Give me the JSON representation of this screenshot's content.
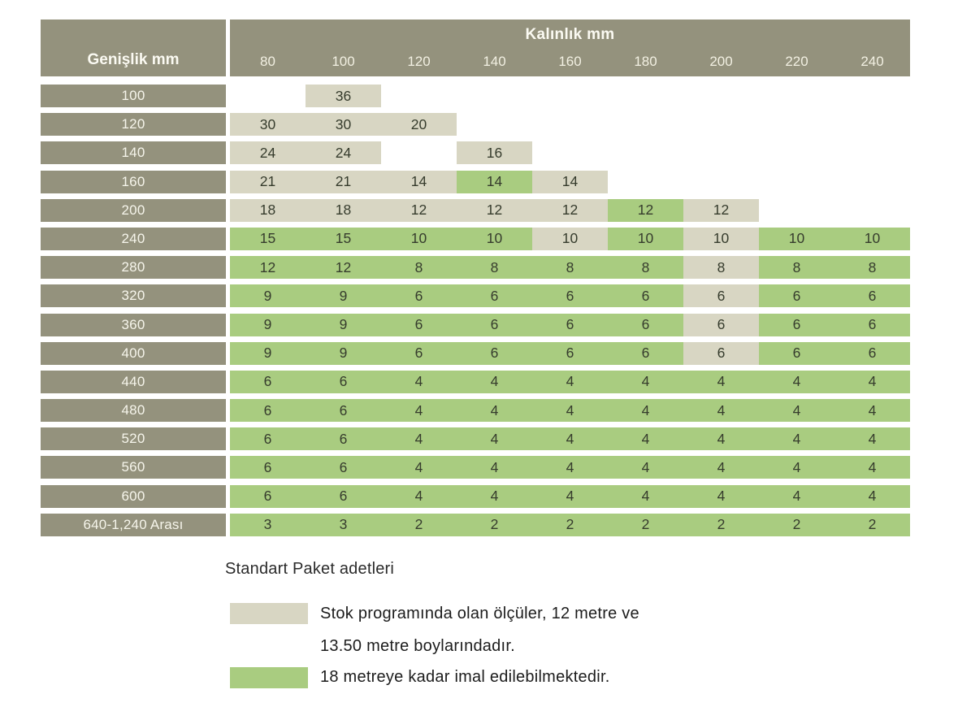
{
  "table": {
    "row_header_label": "Genişlik mm",
    "col_group_label": "Kalınlık mm",
    "columns": [
      "80",
      "100",
      "120",
      "140",
      "160",
      "180",
      "200",
      "220",
      "240"
    ],
    "rows": [
      {
        "label": "100",
        "cells": [
          {
            "v": "",
            "t": "empty"
          },
          {
            "v": "36",
            "t": "stock"
          },
          {
            "v": "",
            "t": "empty"
          },
          {
            "v": "",
            "t": "empty"
          },
          {
            "v": "",
            "t": "empty"
          },
          {
            "v": "",
            "t": "empty"
          },
          {
            "v": "",
            "t": "empty"
          },
          {
            "v": "",
            "t": "empty"
          },
          {
            "v": "",
            "t": "empty"
          }
        ]
      },
      {
        "label": "120",
        "cells": [
          {
            "v": "30",
            "t": "stock"
          },
          {
            "v": "30",
            "t": "stock"
          },
          {
            "v": "20",
            "t": "stock"
          },
          {
            "v": "",
            "t": "empty"
          },
          {
            "v": "",
            "t": "empty"
          },
          {
            "v": "",
            "t": "empty"
          },
          {
            "v": "",
            "t": "empty"
          },
          {
            "v": "",
            "t": "empty"
          },
          {
            "v": "",
            "t": "empty"
          }
        ]
      },
      {
        "label": "140",
        "cells": [
          {
            "v": "24",
            "t": "stock"
          },
          {
            "v": "24",
            "t": "stock"
          },
          {
            "v": "",
            "t": "empty"
          },
          {
            "v": "16",
            "t": "stock"
          },
          {
            "v": "",
            "t": "empty"
          },
          {
            "v": "",
            "t": "empty"
          },
          {
            "v": "",
            "t": "empty"
          },
          {
            "v": "",
            "t": "empty"
          },
          {
            "v": "",
            "t": "empty"
          }
        ]
      },
      {
        "label": "160",
        "cells": [
          {
            "v": "21",
            "t": "stock"
          },
          {
            "v": "21",
            "t": "stock"
          },
          {
            "v": "14",
            "t": "stock"
          },
          {
            "v": "14",
            "t": "production"
          },
          {
            "v": "14",
            "t": "stock"
          },
          {
            "v": "",
            "t": "empty"
          },
          {
            "v": "",
            "t": "empty"
          },
          {
            "v": "",
            "t": "empty"
          },
          {
            "v": "",
            "t": "empty"
          }
        ]
      },
      {
        "label": "200",
        "cells": [
          {
            "v": "18",
            "t": "stock"
          },
          {
            "v": "18",
            "t": "stock"
          },
          {
            "v": "12",
            "t": "stock"
          },
          {
            "v": "12",
            "t": "stock"
          },
          {
            "v": "12",
            "t": "stock"
          },
          {
            "v": "12",
            "t": "production"
          },
          {
            "v": "12",
            "t": "stock"
          },
          {
            "v": "",
            "t": "empty"
          },
          {
            "v": "",
            "t": "empty"
          }
        ]
      },
      {
        "label": "240",
        "cells": [
          {
            "v": "15",
            "t": "production"
          },
          {
            "v": "15",
            "t": "production"
          },
          {
            "v": "10",
            "t": "production"
          },
          {
            "v": "10",
            "t": "production"
          },
          {
            "v": "10",
            "t": "stock"
          },
          {
            "v": "10",
            "t": "production"
          },
          {
            "v": "10",
            "t": "stock"
          },
          {
            "v": "10",
            "t": "production"
          },
          {
            "v": "10",
            "t": "production"
          }
        ]
      },
      {
        "label": "280",
        "cells": [
          {
            "v": "12",
            "t": "production"
          },
          {
            "v": "12",
            "t": "production"
          },
          {
            "v": "8",
            "t": "production"
          },
          {
            "v": "8",
            "t": "production"
          },
          {
            "v": "8",
            "t": "production"
          },
          {
            "v": "8",
            "t": "production"
          },
          {
            "v": "8",
            "t": "stock"
          },
          {
            "v": "8",
            "t": "production"
          },
          {
            "v": "8",
            "t": "production"
          }
        ]
      },
      {
        "label": "320",
        "cells": [
          {
            "v": "9",
            "t": "production"
          },
          {
            "v": "9",
            "t": "production"
          },
          {
            "v": "6",
            "t": "production"
          },
          {
            "v": "6",
            "t": "production"
          },
          {
            "v": "6",
            "t": "production"
          },
          {
            "v": "6",
            "t": "production"
          },
          {
            "v": "6",
            "t": "stock"
          },
          {
            "v": "6",
            "t": "production"
          },
          {
            "v": "6",
            "t": "production"
          }
        ]
      },
      {
        "label": "360",
        "cells": [
          {
            "v": "9",
            "t": "production"
          },
          {
            "v": "9",
            "t": "production"
          },
          {
            "v": "6",
            "t": "production"
          },
          {
            "v": "6",
            "t": "production"
          },
          {
            "v": "6",
            "t": "production"
          },
          {
            "v": "6",
            "t": "production"
          },
          {
            "v": "6",
            "t": "stock"
          },
          {
            "v": "6",
            "t": "production"
          },
          {
            "v": "6",
            "t": "production"
          }
        ]
      },
      {
        "label": "400",
        "cells": [
          {
            "v": "9",
            "t": "production"
          },
          {
            "v": "9",
            "t": "production"
          },
          {
            "v": "6",
            "t": "production"
          },
          {
            "v": "6",
            "t": "production"
          },
          {
            "v": "6",
            "t": "production"
          },
          {
            "v": "6",
            "t": "production"
          },
          {
            "v": "6",
            "t": "stock"
          },
          {
            "v": "6",
            "t": "production"
          },
          {
            "v": "6",
            "t": "production"
          }
        ]
      },
      {
        "label": "440",
        "cells": [
          {
            "v": "6",
            "t": "production"
          },
          {
            "v": "6",
            "t": "production"
          },
          {
            "v": "4",
            "t": "production"
          },
          {
            "v": "4",
            "t": "production"
          },
          {
            "v": "4",
            "t": "production"
          },
          {
            "v": "4",
            "t": "production"
          },
          {
            "v": "4",
            "t": "production"
          },
          {
            "v": "4",
            "t": "production"
          },
          {
            "v": "4",
            "t": "production"
          }
        ]
      },
      {
        "label": "480",
        "cells": [
          {
            "v": "6",
            "t": "production"
          },
          {
            "v": "6",
            "t": "production"
          },
          {
            "v": "4",
            "t": "production"
          },
          {
            "v": "4",
            "t": "production"
          },
          {
            "v": "4",
            "t": "production"
          },
          {
            "v": "4",
            "t": "production"
          },
          {
            "v": "4",
            "t": "production"
          },
          {
            "v": "4",
            "t": "production"
          },
          {
            "v": "4",
            "t": "production"
          }
        ]
      },
      {
        "label": "520",
        "cells": [
          {
            "v": "6",
            "t": "production"
          },
          {
            "v": "6",
            "t": "production"
          },
          {
            "v": "4",
            "t": "production"
          },
          {
            "v": "4",
            "t": "production"
          },
          {
            "v": "4",
            "t": "production"
          },
          {
            "v": "4",
            "t": "production"
          },
          {
            "v": "4",
            "t": "production"
          },
          {
            "v": "4",
            "t": "production"
          },
          {
            "v": "4",
            "t": "production"
          }
        ]
      },
      {
        "label": "560",
        "cells": [
          {
            "v": "6",
            "t": "production"
          },
          {
            "v": "6",
            "t": "production"
          },
          {
            "v": "4",
            "t": "production"
          },
          {
            "v": "4",
            "t": "production"
          },
          {
            "v": "4",
            "t": "production"
          },
          {
            "v": "4",
            "t": "production"
          },
          {
            "v": "4",
            "t": "production"
          },
          {
            "v": "4",
            "t": "production"
          },
          {
            "v": "4",
            "t": "production"
          }
        ]
      },
      {
        "label": "600",
        "cells": [
          {
            "v": "6",
            "t": "production"
          },
          {
            "v": "6",
            "t": "production"
          },
          {
            "v": "4",
            "t": "production"
          },
          {
            "v": "4",
            "t": "production"
          },
          {
            "v": "4",
            "t": "production"
          },
          {
            "v": "4",
            "t": "production"
          },
          {
            "v": "4",
            "t": "production"
          },
          {
            "v": "4",
            "t": "production"
          },
          {
            "v": "4",
            "t": "production"
          }
        ]
      },
      {
        "label": "640-1,240 Arası",
        "cells": [
          {
            "v": "3",
            "t": "production"
          },
          {
            "v": "3",
            "t": "production"
          },
          {
            "v": "2",
            "t": "production"
          },
          {
            "v": "2",
            "t": "production"
          },
          {
            "v": "2",
            "t": "production"
          },
          {
            "v": "2",
            "t": "production"
          },
          {
            "v": "2",
            "t": "production"
          },
          {
            "v": "2",
            "t": "production"
          },
          {
            "v": "2",
            "t": "production"
          }
        ]
      }
    ]
  },
  "legend": {
    "title": "Standart Paket adetleri",
    "items": [
      {
        "type": "stock",
        "lines": [
          "Stok programında olan ölçüler, 12 metre ve",
          "13.50 metre boylarındadır."
        ]
      },
      {
        "type": "production",
        "lines": [
          "18 metreye kadar imal edilebilmektedir."
        ]
      }
    ]
  },
  "colors": {
    "header_bg": "#94927D",
    "header_text": "#FBFAF2",
    "stock": "#D8D6C3",
    "production": "#A9CC80",
    "value_text": "#363C2D"
  }
}
